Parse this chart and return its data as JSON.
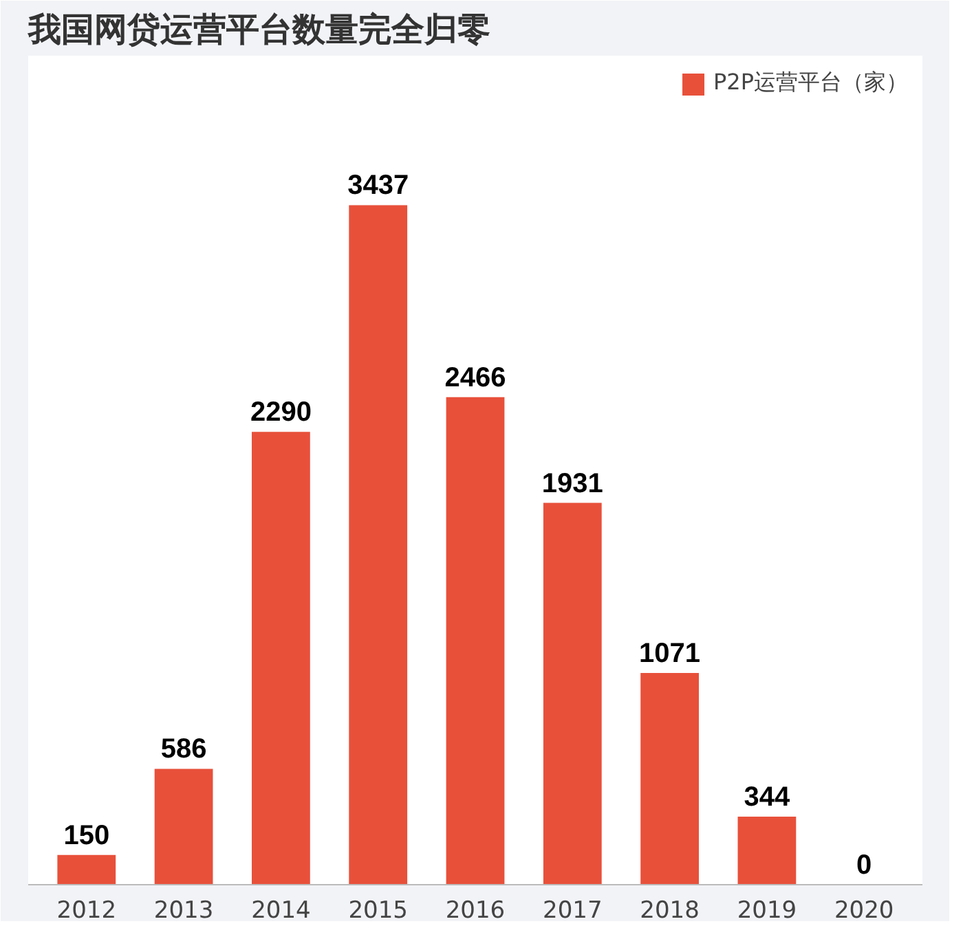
{
  "chart_data": {
    "type": "bar",
    "title": "我国网贷运营平台数量完全归零",
    "categories": [
      "2012",
      "2013",
      "2014",
      "2015",
      "2016",
      "2017",
      "2018",
      "2019",
      "2020"
    ],
    "series": [
      {
        "name": "P2P运营平台（家）",
        "color": "#e8503a",
        "values": [
          150,
          586,
          2290,
          3437,
          2466,
          1931,
          1071,
          344,
          0
        ]
      }
    ],
    "data_labels": true,
    "legend": "top right",
    "grid": false,
    "tick_labels": "x"
  }
}
